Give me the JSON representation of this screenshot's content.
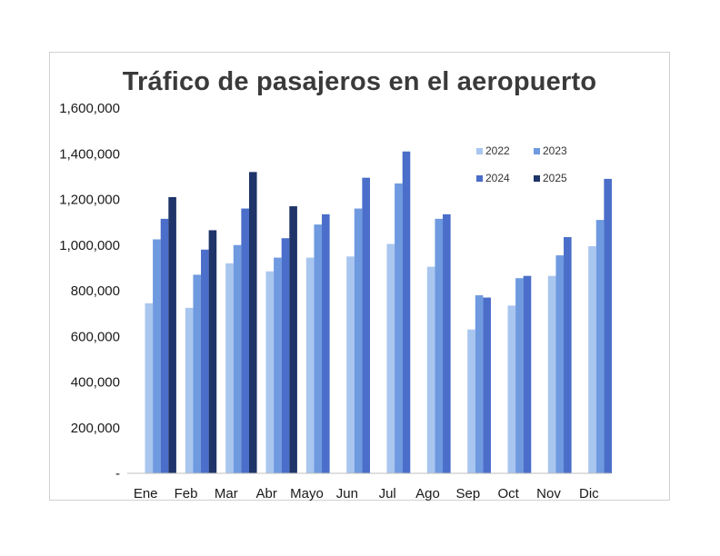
{
  "chart_data": {
    "type": "bar",
    "title": "Tráfico de pasajeros en el aeropuerto",
    "xlabel": "",
    "ylabel": "",
    "categories": [
      "Ene",
      "Feb",
      "Mar",
      "Abr",
      "Mayo",
      "Jun",
      "Jul",
      "Ago",
      "Sep",
      "Oct",
      "Nov",
      "Dic"
    ],
    "ylim": [
      0,
      1600000
    ],
    "yticks": [
      0,
      200000,
      400000,
      600000,
      800000,
      1000000,
      1200000,
      1400000,
      1600000
    ],
    "ytick_labels": [
      "-",
      "200,000",
      "400,000",
      "600,000",
      "800,000",
      "1,000,000",
      "1,200,000",
      "1,400,000",
      "1,600,000"
    ],
    "grid": false,
    "legend_position": "top-right",
    "series": [
      {
        "name": "2022",
        "color": "#a9c6ef",
        "values": [
          745000,
          725000,
          920000,
          885000,
          945000,
          950000,
          1005000,
          905000,
          630000,
          735000,
          865000,
          995000
        ]
      },
      {
        "name": "2023",
        "color": "#6f9ae0",
        "values": [
          1025000,
          870000,
          1000000,
          945000,
          1090000,
          1160000,
          1270000,
          1115000,
          780000,
          855000,
          955000,
          1110000
        ]
      },
      {
        "name": "2024",
        "color": "#4a6ec9",
        "values": [
          1115000,
          980000,
          1160000,
          1030000,
          1135000,
          1295000,
          1410000,
          1135000,
          770000,
          865000,
          1035000,
          1290000
        ]
      },
      {
        "name": "2025",
        "color": "#1f3468",
        "values": [
          1210000,
          1065000,
          1320000,
          1170000,
          null,
          null,
          null,
          null,
          null,
          null,
          null,
          null
        ]
      }
    ]
  }
}
